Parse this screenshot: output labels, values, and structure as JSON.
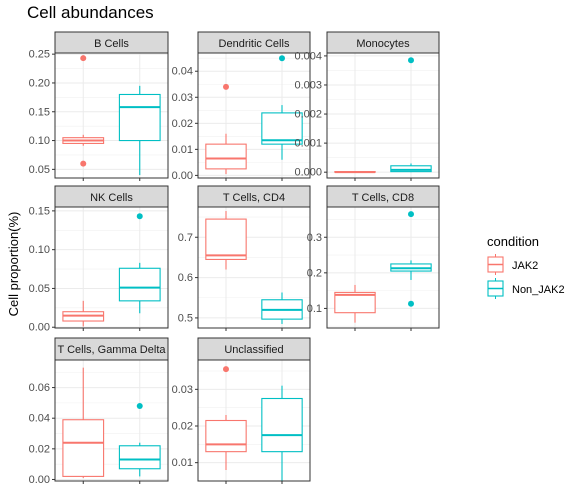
{
  "title": "Cell abundances",
  "ylabel": "Cell proportion(%)",
  "colors": {
    "JAK2": "#F8766D",
    "Non_JAK2": "#00BFC4"
  },
  "legend": {
    "title": "condition",
    "entries": [
      "JAK2",
      "Non_JAK2"
    ],
    "placement": "right"
  },
  "chart_data": {
    "type": "boxplot",
    "grid": true,
    "categories": [
      "JAK2",
      "Non_JAK2"
    ],
    "facets": [
      {
        "label": "B Cells",
        "ylim": [
          0.035,
          0.252
        ],
        "ticks": [
          "0.05",
          "0.10",
          "0.15",
          "0.20",
          "0.25"
        ],
        "boxes": [
          {
            "group": "JAK2",
            "lower_whisker": 0.091,
            "q1": 0.095,
            "median": 0.1,
            "q3": 0.105,
            "upper_whisker": 0.11,
            "outliers": [
              0.243,
              0.06
            ]
          },
          {
            "group": "Non_JAK2",
            "lower_whisker": 0.04,
            "q1": 0.1,
            "median": 0.158,
            "q3": 0.18,
            "upper_whisker": 0.195,
            "outliers": []
          }
        ]
      },
      {
        "label": "Dendritic Cells",
        "ylim": [
          -0.001,
          0.047
        ],
        "ticks": [
          "0.00",
          "0.01",
          "0.02",
          "0.03",
          "0.04"
        ],
        "boxes": [
          {
            "group": "JAK2",
            "lower_whisker": 0.0005,
            "q1": 0.0025,
            "median": 0.0065,
            "q3": 0.012,
            "upper_whisker": 0.016,
            "outliers": [
              0.034
            ]
          },
          {
            "group": "Non_JAK2",
            "lower_whisker": 0.006,
            "q1": 0.012,
            "median": 0.0135,
            "q3": 0.024,
            "upper_whisker": 0.027,
            "outliers": [
              0.045
            ]
          }
        ]
      },
      {
        "label": "Monocytes",
        "ylim": [
          -0.0002,
          0.0041
        ],
        "ticks": [
          "0.000",
          "0.001",
          "0.002",
          "0.003",
          "0.004"
        ],
        "boxes": [
          {
            "group": "JAK2",
            "lower_whisker": 0.0,
            "q1": 0.0,
            "median": 0.0,
            "q3": 2e-05,
            "upper_whisker": 4e-05,
            "outliers": []
          },
          {
            "group": "Non_JAK2",
            "lower_whisker": 0.0,
            "q1": 2e-05,
            "median": 8e-05,
            "q3": 0.00022,
            "upper_whisker": 0.0003,
            "outliers": [
              0.00385
            ]
          }
        ]
      },
      {
        "label": "NK Cells",
        "ylim": [
          -0.001,
          0.155
        ],
        "ticks": [
          "0.00",
          "0.05",
          "0.10",
          "0.15"
        ],
        "boxes": [
          {
            "group": "JAK2",
            "lower_whisker": 0.001,
            "q1": 0.008,
            "median": 0.015,
            "q3": 0.02,
            "upper_whisker": 0.034,
            "outliers": []
          },
          {
            "group": "Non_JAK2",
            "lower_whisker": 0.018,
            "q1": 0.034,
            "median": 0.051,
            "q3": 0.076,
            "upper_whisker": 0.083,
            "outliers": [
              0.143
            ]
          }
        ]
      },
      {
        "label": "T Cells, CD4",
        "ylim": [
          0.475,
          0.775
        ],
        "ticks": [
          "0.5",
          "0.6",
          "0.7"
        ],
        "boxes": [
          {
            "group": "JAK2",
            "lower_whisker": 0.62,
            "q1": 0.645,
            "median": 0.655,
            "q3": 0.745,
            "upper_whisker": 0.765,
            "outliers": []
          },
          {
            "group": "Non_JAK2",
            "lower_whisker": 0.485,
            "q1": 0.497,
            "median": 0.52,
            "q3": 0.545,
            "upper_whisker": 0.563,
            "outliers": []
          }
        ]
      },
      {
        "label": "T Cells, CD8",
        "ylim": [
          0.045,
          0.385
        ],
        "ticks": [
          "0.1",
          "0.2",
          "0.3"
        ],
        "boxes": [
          {
            "group": "JAK2",
            "lower_whisker": 0.06,
            "q1": 0.088,
            "median": 0.138,
            "q3": 0.145,
            "upper_whisker": 0.166,
            "outliers": []
          },
          {
            "group": "Non_JAK2",
            "lower_whisker": 0.18,
            "q1": 0.205,
            "median": 0.213,
            "q3": 0.225,
            "upper_whisker": 0.235,
            "outliers": [
              0.365,
              0.113
            ]
          }
        ]
      },
      {
        "label": "T Cells, Gamma Delta",
        "ylim": [
          -0.001,
          0.078
        ],
        "ticks": [
          "0.00",
          "0.02",
          "0.04",
          "0.06"
        ],
        "boxes": [
          {
            "group": "JAK2",
            "lower_whisker": 0.001,
            "q1": 0.002,
            "median": 0.024,
            "q3": 0.039,
            "upper_whisker": 0.073,
            "outliers": []
          },
          {
            "group": "Non_JAK2",
            "lower_whisker": 0.002,
            "q1": 0.007,
            "median": 0.013,
            "q3": 0.022,
            "upper_whisker": 0.024,
            "outliers": [
              0.048
            ]
          }
        ]
      },
      {
        "label": "Unclassified",
        "ylim": [
          0.005,
          0.038
        ],
        "ticks": [
          "0.01",
          "0.02",
          "0.03"
        ],
        "boxes": [
          {
            "group": "JAK2",
            "lower_whisker": 0.008,
            "q1": 0.013,
            "median": 0.015,
            "q3": 0.0215,
            "upper_whisker": 0.023,
            "outliers": [
              0.0355
            ]
          },
          {
            "group": "Non_JAK2",
            "lower_whisker": 0.005,
            "q1": 0.013,
            "median": 0.0175,
            "q3": 0.0275,
            "upper_whisker": 0.031,
            "outliers": []
          }
        ]
      }
    ]
  }
}
